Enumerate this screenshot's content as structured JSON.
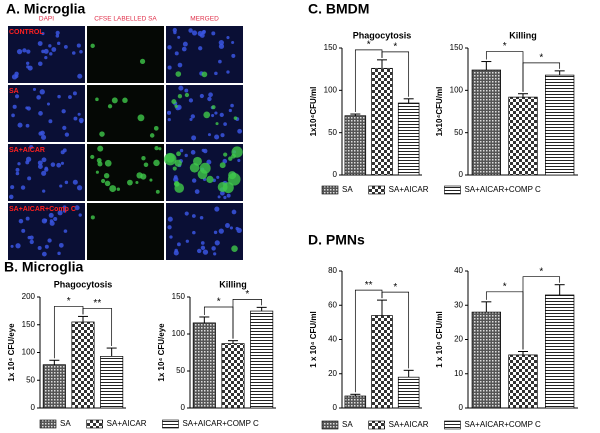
{
  "panel_a": {
    "title": "A. Microglia",
    "columns": [
      "DAPI",
      "CFSE LABELLED  SA",
      "MERGED"
    ],
    "rows": [
      "CONTROL",
      "SA",
      "SA+AICAR",
      "SA+AICAR+Comp C"
    ]
  },
  "panels": [
    {
      "title": "B. Microglia",
      "legend": [
        "SA",
        "SA+AICAR",
        "SA+AICAR+COMP C"
      ]
    },
    {
      "title": "C. BMDM",
      "legend": [
        "SA",
        "SA+AICAR",
        "SA+AICAR+COMP C"
      ]
    },
    {
      "title": "D. PMNs",
      "legend": [
        "SA",
        "SA+AICAR",
        "SA+AICAR+COMP C"
      ]
    }
  ],
  "chart_data": [
    {
      "type": "bar",
      "title": "Phagocytosis",
      "ylabel": "1x 10⁴ CFU/eye",
      "values": [
        78,
        155,
        93
      ],
      "errors": [
        8,
        10,
        15
      ],
      "ylim": [
        0,
        200
      ],
      "yticks": [
        0,
        50,
        100,
        150,
        200
      ],
      "significance": [
        "*",
        "**"
      ]
    },
    {
      "type": "bar",
      "title": "Killing",
      "ylabel": "1x 10⁴ CFU/eye",
      "values": [
        115,
        87,
        131
      ],
      "errors": [
        8,
        4,
        5
      ],
      "ylim": [
        0,
        150
      ],
      "yticks": [
        0,
        50,
        100,
        150
      ],
      "significance": [
        "*",
        "*"
      ]
    },
    {
      "type": "bar",
      "title": "Phagocytosis",
      "ylabel": "1x10⁴CFU/ml",
      "values": [
        70,
        126,
        85
      ],
      "errors": [
        2,
        10,
        5
      ],
      "ylim": [
        0,
        150
      ],
      "yticks": [
        0,
        50,
        100,
        150
      ],
      "significance": [
        "*",
        "*"
      ]
    },
    {
      "type": "bar",
      "title": "Killing",
      "ylabel": "1x10⁴CFU/ml",
      "values": [
        124,
        92,
        118
      ],
      "errors": [
        10,
        4,
        5
      ],
      "ylim": [
        0,
        150
      ],
      "yticks": [
        0,
        50,
        100,
        150
      ],
      "significance": [
        "*",
        "*"
      ]
    },
    {
      "type": "bar",
      "ylabel": "1 x 10⁴ CFU/ml",
      "values": [
        7,
        54,
        18
      ],
      "errors": [
        1,
        9,
        4
      ],
      "ylim": [
        0,
        80
      ],
      "yticks": [
        0,
        20,
        40,
        60,
        80
      ],
      "significance": [
        "**",
        "*"
      ]
    },
    {
      "type": "bar",
      "ylabel": "1 x 10⁴ CFU/ml",
      "values": [
        28,
        15.5,
        33
      ],
      "errors": [
        3,
        1,
        3
      ],
      "ylim": [
        0,
        40
      ],
      "yticks": [
        0,
        10,
        20,
        30,
        40
      ],
      "significance": [
        "*",
        "*"
      ]
    }
  ]
}
